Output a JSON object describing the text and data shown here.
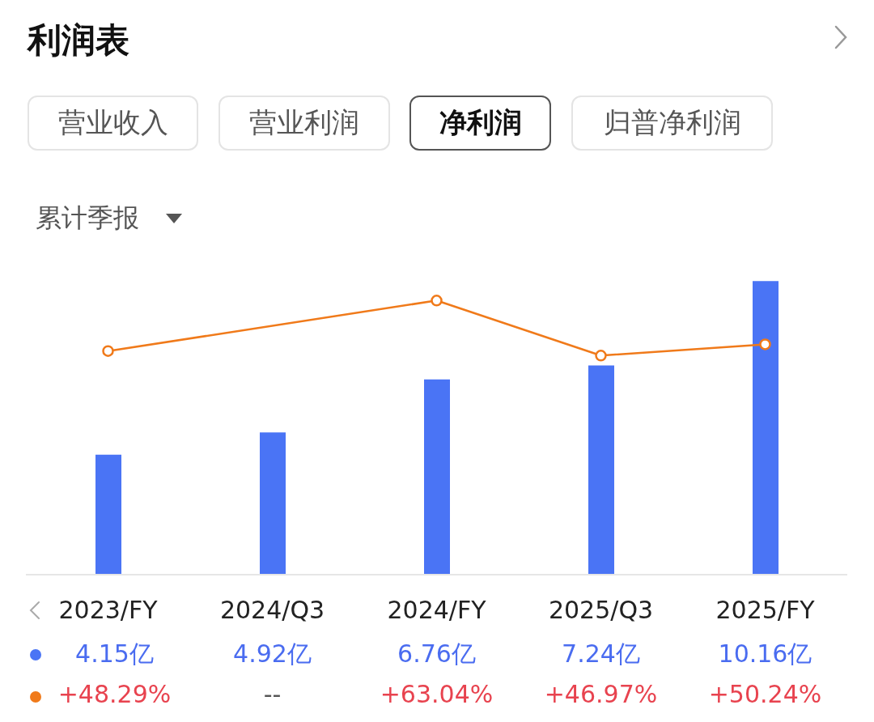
{
  "chart_data": {
    "type": "bar",
    "title": "利润表",
    "subtitle": "净利润",
    "annotations": [
      "营业收入",
      "营业利润",
      "归普净利润",
      "累计季报"
    ],
    "categories": [
      "2023/FY",
      "2024/Q3",
      "2024/FY",
      "2025/Q3",
      "2025/FY"
    ],
    "series": [
      {
        "color": "#4a74f5",
        "values": [
          4.15,
          4.92,
          6.76,
          7.24,
          10.16
        ],
        "value_labels": [
          "4.15亿",
          "4.92亿",
          "6.76亿",
          "7.24亿",
          "10.16亿"
        ]
      },
      {
        "type": "line",
        "axis": "y2",
        "color": "#f07a1a",
        "values": [
          48.29,
          null,
          63.04,
          46.97,
          50.24
        ],
        "value_labels": [
          "+48.29%",
          "--",
          "+63.04%",
          "+46.97%",
          "+50.24%"
        ]
      }
    ],
    "marker": "circle",
    "line_style": "solid"
  }
}
